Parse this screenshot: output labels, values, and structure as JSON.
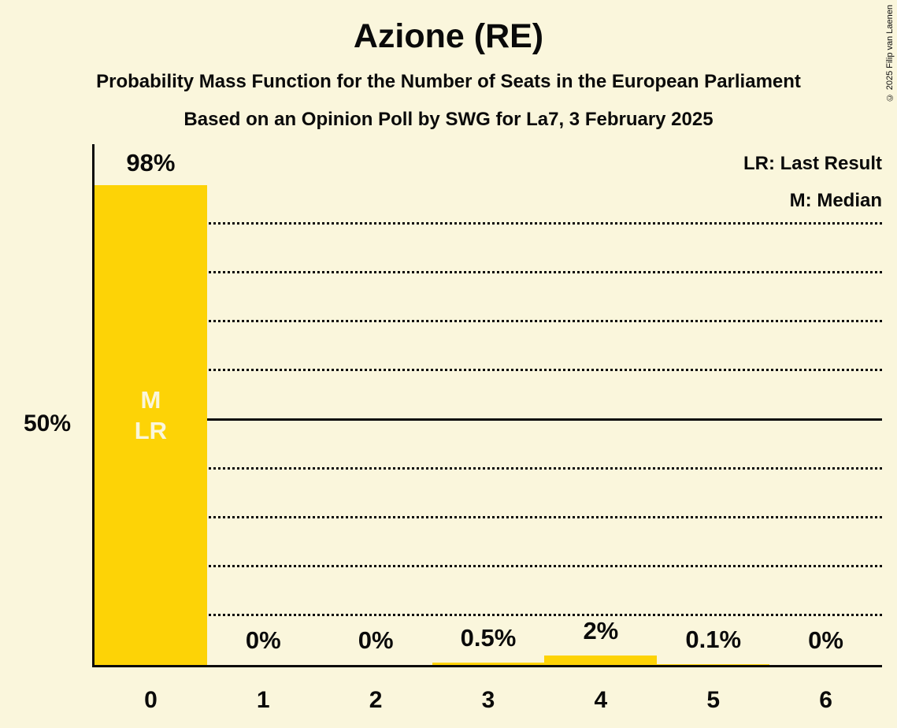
{
  "title": "Azione (RE)",
  "subtitle": "Probability Mass Function for the Number of Seats in the European Parliament",
  "poll_line": "Based on an Opinion Poll by SWG for La7, 3 February 2025",
  "copyright": "© 2025 Filip van Laenen",
  "legend": {
    "lr": "LR: Last Result",
    "m": "M: Median"
  },
  "y_axis": {
    "tick_label": "50%",
    "tick_value": 50
  },
  "chart_data": {
    "type": "bar",
    "title": "Azione (RE)",
    "xlabel": "",
    "ylabel": "",
    "categories": [
      "0",
      "1",
      "2",
      "3",
      "4",
      "5",
      "6"
    ],
    "values": [
      98,
      0,
      0,
      0.5,
      2,
      0.1,
      0
    ],
    "value_labels": [
      "98%",
      "0%",
      "0%",
      "0.5%",
      "2%",
      "0.1%",
      "0%"
    ],
    "ylim": [
      0,
      107
    ],
    "gridlines_pct": [
      10,
      20,
      30,
      40,
      60,
      70,
      80,
      90
    ],
    "solid_line_pct": 50,
    "grid": "dotted",
    "legend_position": "top-right",
    "annotations": [
      {
        "bar_index": 0,
        "lines": [
          "M",
          "LR"
        ]
      }
    ],
    "colors": {
      "bar": "#FDD306",
      "background": "#FAF6DC",
      "text": "#0A0A0A"
    }
  }
}
